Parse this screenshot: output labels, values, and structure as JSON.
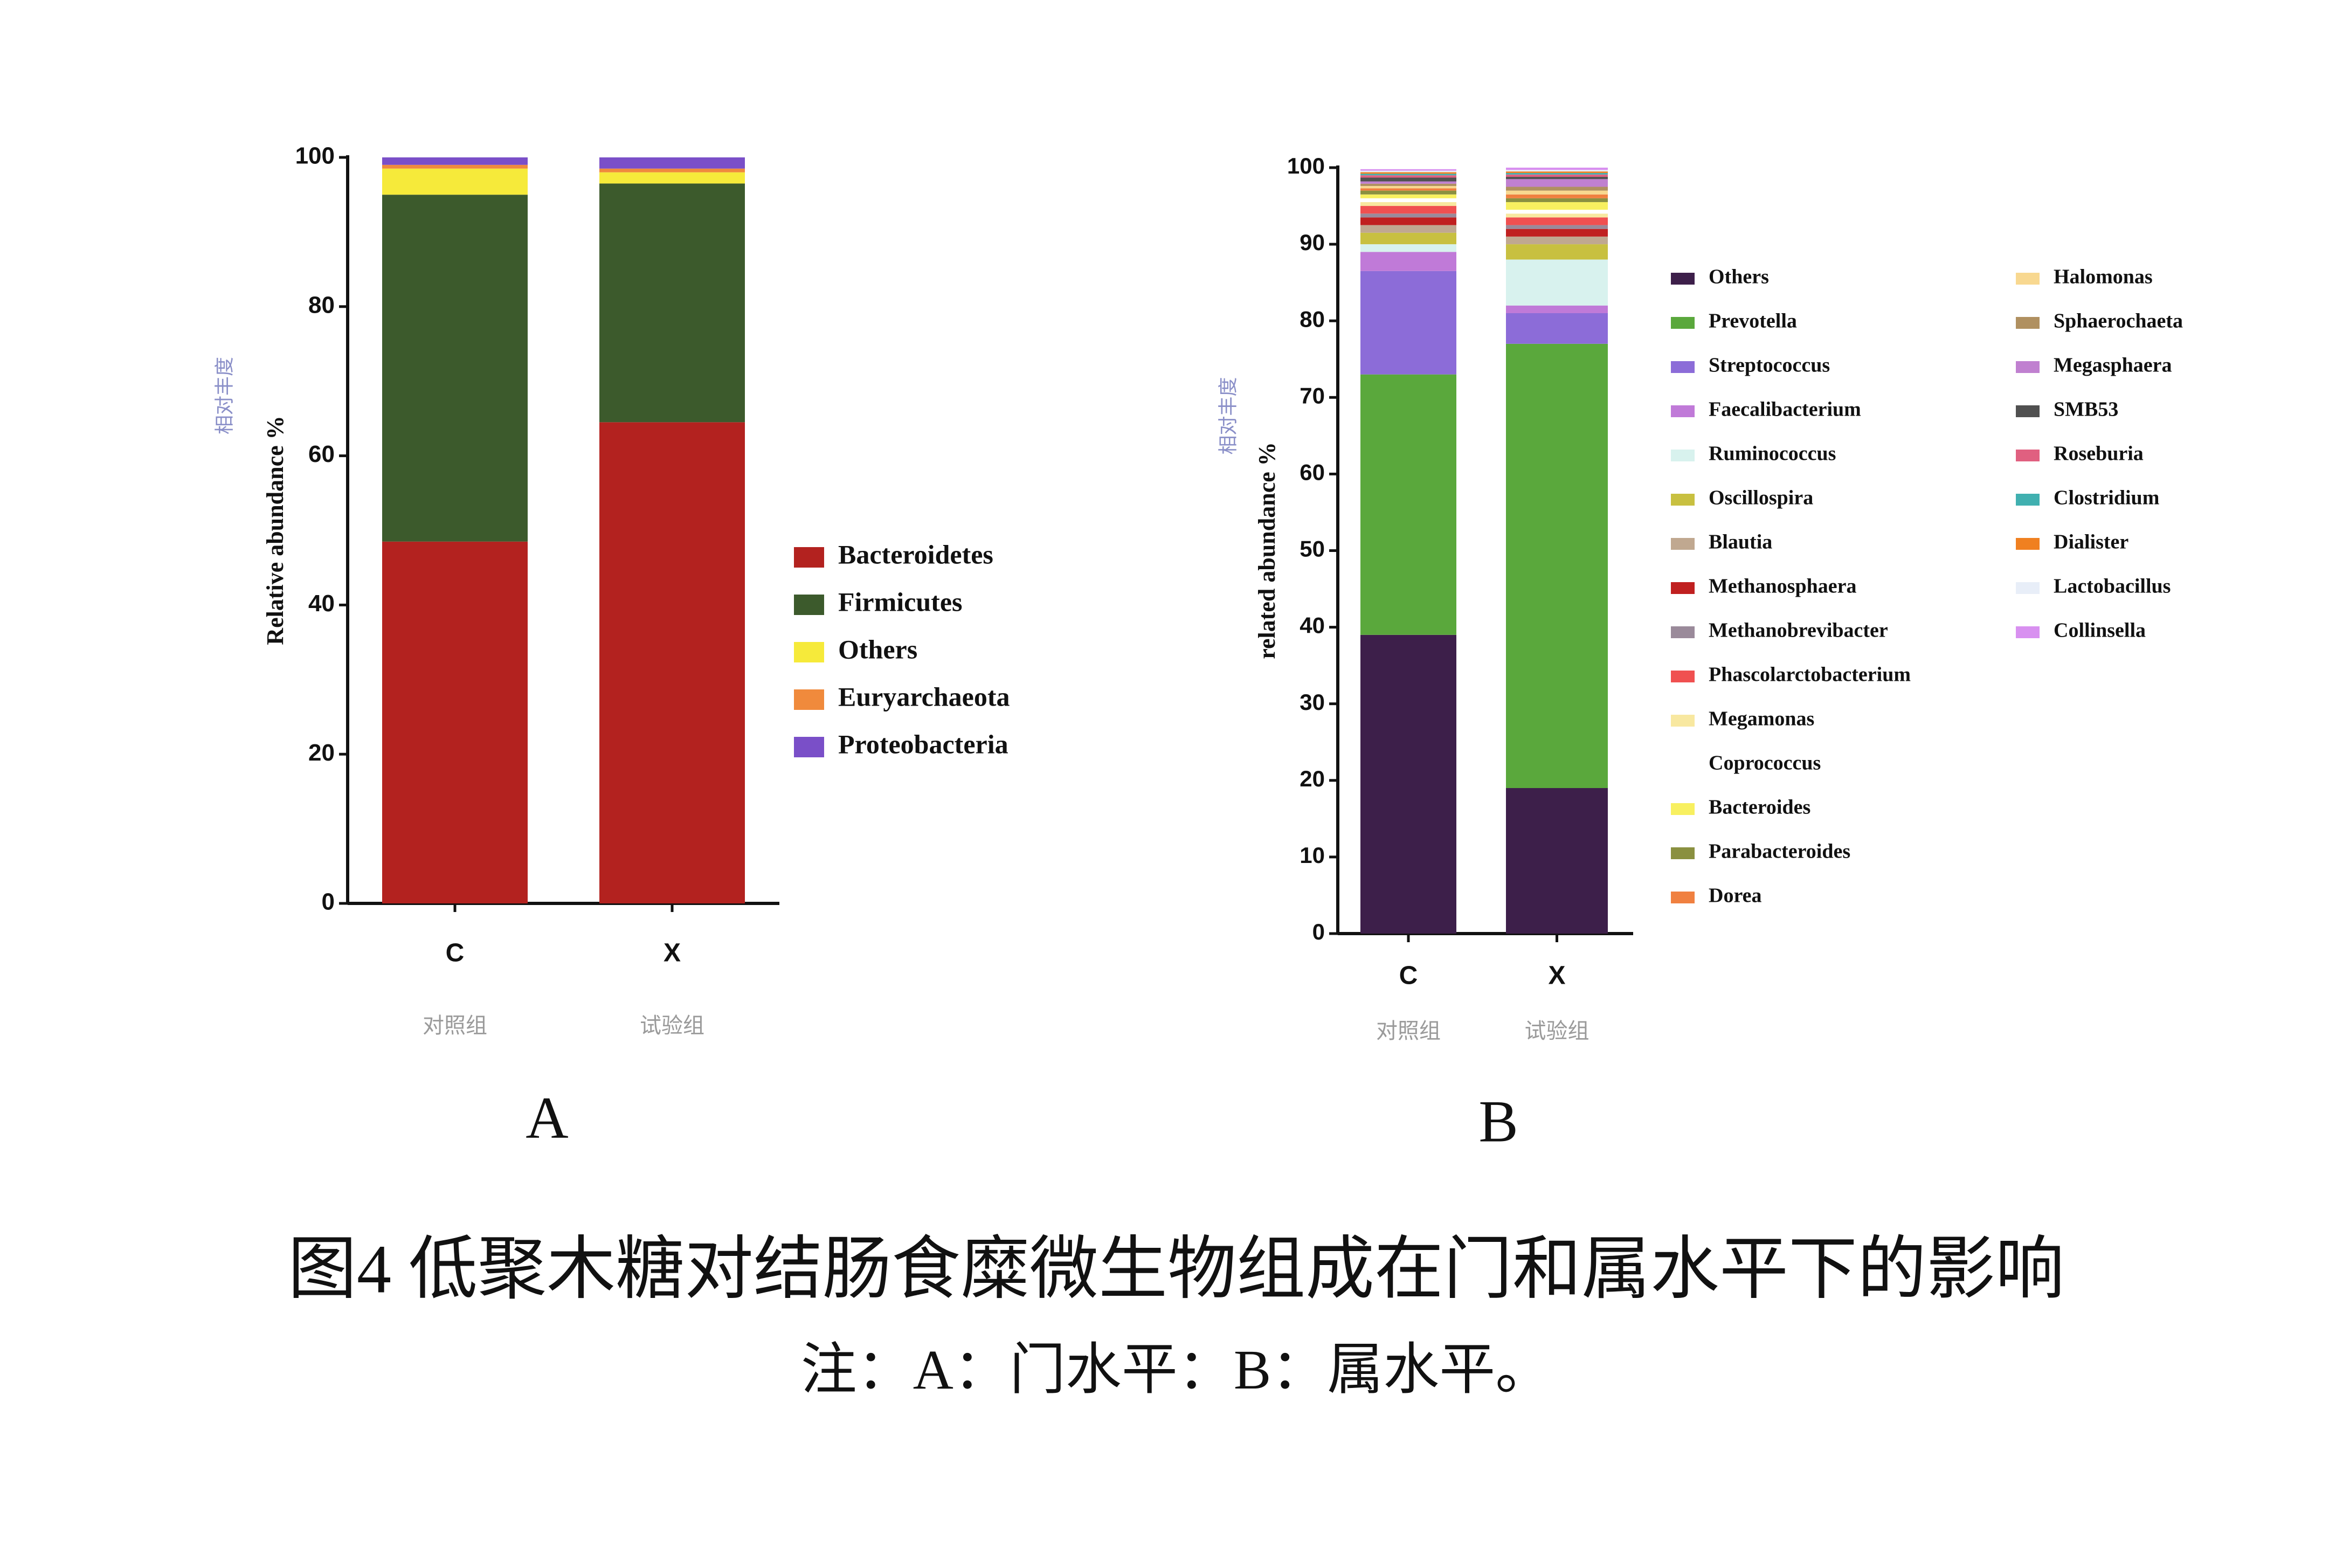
{
  "chart_data": [
    {
      "type": "stacked_bar",
      "panel": "A",
      "ylabel": "Relative abundance %",
      "ylabel_cn": "相对丰度",
      "categories": [
        "C",
        "X"
      ],
      "category_notes": [
        "对照组",
        "试验组"
      ],
      "ylim": [
        0,
        100
      ],
      "yticks": [
        0,
        20,
        40,
        60,
        80,
        100
      ],
      "series": [
        {
          "name": "Bacteroidetes",
          "color": "#b3221f",
          "values": [
            48.5,
            64.5
          ]
        },
        {
          "name": "Firmicutes",
          "color": "#3c5a2c",
          "values": [
            46.5,
            32
          ]
        },
        {
          "name": "Others",
          "color": "#f6ea3a",
          "values": [
            3.5,
            1.5
          ]
        },
        {
          "name": "Euryarchaeota",
          "color": "#f08a3c",
          "values": [
            0.5,
            0.5
          ]
        },
        {
          "name": "Proteobacteria",
          "color": "#7a4fc8",
          "values": [
            1,
            1.5
          ]
        }
      ]
    },
    {
      "type": "stacked_bar",
      "panel": "B",
      "ylabel": "related abundance %",
      "ylabel_cn": "相对丰度",
      "categories": [
        "C",
        "X"
      ],
      "category_notes": [
        "对照组",
        "试验组"
      ],
      "ylim": [
        0,
        100
      ],
      "yticks": [
        0,
        10,
        20,
        30,
        40,
        50,
        60,
        70,
        80,
        90,
        100
      ],
      "series": [
        {
          "name": "Others",
          "color": "#3d1f4a",
          "values": [
            39,
            19
          ]
        },
        {
          "name": "Prevotella",
          "color": "#5aa83c",
          "values": [
            34,
            58
          ]
        },
        {
          "name": "Streptococcus",
          "color": "#8c6cd8",
          "values": [
            13.5,
            4
          ]
        },
        {
          "name": "Faecalibacterium",
          "color": "#c07ad8",
          "values": [
            2.5,
            1
          ]
        },
        {
          "name": "Ruminococcus",
          "color": "#d8f2ee",
          "values": [
            1,
            6
          ]
        },
        {
          "name": "Oscillospira",
          "color": "#c8c040",
          "values": [
            1.5,
            2
          ]
        },
        {
          "name": "Blautia",
          "color": "#c0a890",
          "values": [
            1,
            1
          ]
        },
        {
          "name": "Methanosphaera",
          "color": "#c02020",
          "values": [
            1,
            1
          ]
        },
        {
          "name": "Methanobrevibacter",
          "color": "#9a8a9a",
          "values": [
            0.5,
            0.5
          ]
        },
        {
          "name": "Phascolarctobacterium",
          "color": "#f05050",
          "values": [
            1,
            1
          ]
        },
        {
          "name": "Megamonas",
          "color": "#f8e8a0",
          "values": [
            0.5,
            0.5
          ]
        },
        {
          "name": "Coprococcus",
          "color": "#ffffff",
          "values": [
            0.5,
            0.5
          ]
        },
        {
          "name": "Bacteroides",
          "color": "#f8f060",
          "values": [
            0.5,
            1
          ]
        },
        {
          "name": "Parabacteroides",
          "color": "#8a9040",
          "values": [
            0.5,
            0.5
          ]
        },
        {
          "name": "Dorea",
          "color": "#f08040",
          "values": [
            0.3,
            0.5
          ]
        },
        {
          "name": "Halomonas",
          "color": "#f8d890",
          "values": [
            0.3,
            0.5
          ]
        },
        {
          "name": "Sphaerochaeta",
          "color": "#b09060",
          "values": [
            0.3,
            0.5
          ]
        },
        {
          "name": "Megasphaera",
          "color": "#c080d0",
          "values": [
            0.3,
            1
          ]
        },
        {
          "name": "SMB53",
          "color": "#505050",
          "values": [
            0.5,
            0.3
          ]
        },
        {
          "name": "Roseburia",
          "color": "#e06080",
          "values": [
            0.3,
            0.3
          ]
        },
        {
          "name": "Clostridium",
          "color": "#40b0b0",
          "values": [
            0.2,
            0.2
          ]
        },
        {
          "name": "Dialister",
          "color": "#f08020",
          "values": [
            0.2,
            0.2
          ]
        },
        {
          "name": "Lactobacillus",
          "color": "#e8eef8",
          "values": [
            0.2,
            0.2
          ]
        },
        {
          "name": "Collinsella",
          "color": "#d890f0",
          "values": [
            0.2,
            0.3
          ]
        }
      ]
    }
  ],
  "caption": {
    "title": "图4 低聚木糖对结肠食糜微生物组成在门和属水平下的影响",
    "note": "注：A：门水平：B：属水平。"
  }
}
